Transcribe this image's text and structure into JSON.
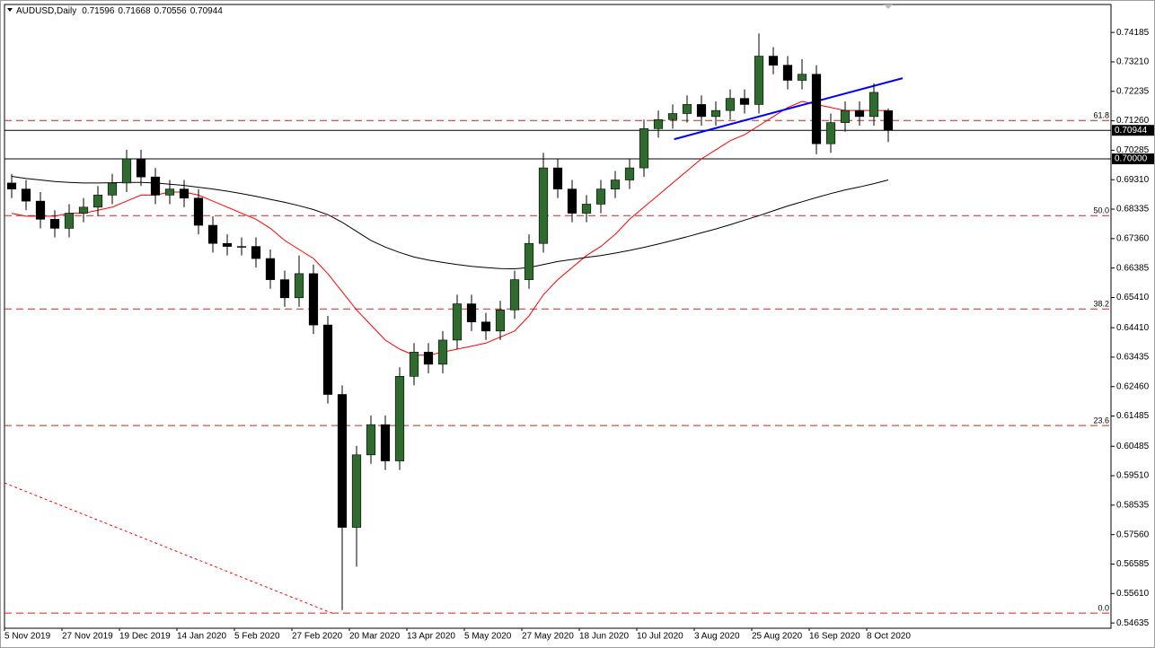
{
  "chart_data": {
    "type": "candlestick",
    "title": "AUDUSD,Daily",
    "categories": [
      "5 Nov 2019",
      null,
      null,
      null,
      "27 Nov 2019",
      null,
      null,
      null,
      "19 Dec 2019",
      null,
      null,
      null,
      "14 Jan 2020",
      null,
      null,
      null,
      "5 Feb 2020",
      null,
      null,
      null,
      "27 Feb 2020",
      null,
      null,
      null,
      "20 Mar 2020",
      null,
      null,
      null,
      "13 Apr 2020",
      null,
      null,
      null,
      "5 May 2020",
      null,
      null,
      null,
      "27 May 2020",
      null,
      null,
      null,
      "18 Jun 2020",
      null,
      null,
      null,
      "10 Jul 2020",
      null,
      null,
      null,
      "3 Aug 2020",
      null,
      null,
      null,
      "25 Aug 2020",
      null,
      null,
      null,
      "16 Sep 2020",
      null,
      null,
      null,
      "8 Oct 2020",
      null
    ],
    "open": [
      0.692,
      0.69,
      0.686,
      0.68,
      0.677,
      0.682,
      0.684,
      0.688,
      0.692,
      0.7,
      0.694,
      0.688,
      0.69,
      0.687,
      0.678,
      0.672,
      0.671,
      0.671,
      0.667,
      0.66,
      0.654,
      0.662,
      0.645,
      0.622,
      0.578,
      0.602,
      0.612,
      0.6,
      0.628,
      0.636,
      0.632,
      0.64,
      0.652,
      0.646,
      0.643,
      0.65,
      0.66,
      0.672,
      0.697,
      0.69,
      0.682,
      0.685,
      0.69,
      0.693,
      0.697,
      0.71,
      0.713,
      0.715,
      0.718,
      0.714,
      0.716,
      0.72,
      0.718,
      0.734,
      0.731,
      0.726,
      0.728,
      0.705,
      0.712,
      0.716,
      0.714,
      0.71596
    ],
    "high": [
      0.695,
      0.693,
      0.689,
      0.683,
      0.685,
      0.687,
      0.691,
      0.695,
      0.703,
      0.703,
      0.697,
      0.693,
      0.693,
      0.69,
      0.681,
      0.675,
      0.674,
      0.674,
      0.67,
      0.663,
      0.668,
      0.665,
      0.648,
      0.625,
      0.605,
      0.615,
      0.615,
      0.631,
      0.639,
      0.639,
      0.643,
      0.655,
      0.655,
      0.649,
      0.653,
      0.663,
      0.675,
      0.702,
      0.7,
      0.693,
      0.688,
      0.693,
      0.696,
      0.7,
      0.713,
      0.716,
      0.718,
      0.721,
      0.721,
      0.719,
      0.723,
      0.723,
      0.7415,
      0.737,
      0.734,
      0.733,
      0.731,
      0.715,
      0.719,
      0.719,
      0.725,
      0.71668
    ],
    "low": [
      0.687,
      0.683,
      0.677,
      0.674,
      0.674,
      0.679,
      0.681,
      0.685,
      0.689,
      0.691,
      0.685,
      0.685,
      0.684,
      0.675,
      0.669,
      0.668,
      0.668,
      0.664,
      0.657,
      0.651,
      0.651,
      0.642,
      0.619,
      0.5506,
      0.565,
      0.599,
      0.597,
      0.597,
      0.625,
      0.629,
      0.629,
      0.637,
      0.643,
      0.64,
      0.64,
      0.647,
      0.657,
      0.669,
      0.687,
      0.679,
      0.679,
      0.682,
      0.687,
      0.69,
      0.694,
      0.707,
      0.71,
      0.712,
      0.711,
      0.711,
      0.713,
      0.715,
      0.715,
      0.728,
      0.723,
      0.723,
      0.7015,
      0.702,
      0.709,
      0.711,
      0.711,
      0.70556
    ],
    "close": [
      0.69,
      0.686,
      0.68,
      0.677,
      0.682,
      0.684,
      0.688,
      0.692,
      0.7,
      0.694,
      0.688,
      0.69,
      0.687,
      0.678,
      0.672,
      0.671,
      0.671,
      0.667,
      0.66,
      0.654,
      0.662,
      0.645,
      0.622,
      0.578,
      0.602,
      0.612,
      0.6,
      0.628,
      0.636,
      0.632,
      0.64,
      0.652,
      0.646,
      0.643,
      0.65,
      0.66,
      0.672,
      0.697,
      0.69,
      0.682,
      0.685,
      0.69,
      0.693,
      0.697,
      0.71,
      0.713,
      0.715,
      0.718,
      0.714,
      0.716,
      0.72,
      0.718,
      0.734,
      0.731,
      0.726,
      0.728,
      0.705,
      0.712,
      0.716,
      0.714,
      0.722,
      0.70944
    ],
    "colors": {
      "bull": "#2f6b2f",
      "bear": "#000000",
      "wick": "#000000"
    },
    "series": [
      {
        "color": "#ff0000",
        "values": [
          0.682,
          0.681,
          0.681,
          0.681,
          0.682,
          0.682,
          0.683,
          0.684,
          0.686,
          0.688,
          0.688,
          0.689,
          0.689,
          0.688,
          0.686,
          0.684,
          0.682,
          0.68,
          0.677,
          0.673,
          0.67,
          0.667,
          0.662,
          0.656,
          0.65,
          0.645,
          0.64,
          0.637,
          0.635,
          0.635,
          0.636,
          0.637,
          0.638,
          0.639,
          0.641,
          0.643,
          0.648,
          0.655,
          0.66,
          0.664,
          0.668,
          0.671,
          0.675,
          0.68,
          0.684,
          0.688,
          0.692,
          0.696,
          0.7,
          0.703,
          0.706,
          0.708,
          0.711,
          0.714,
          0.717,
          0.719,
          0.718,
          0.717,
          0.716,
          0.716,
          0.716,
          0.716
        ]
      },
      {
        "color": "#000000",
        "values": [
          0.6942,
          0.6935,
          0.693,
          0.6925,
          0.6922,
          0.692,
          0.692,
          0.6921,
          0.6922,
          0.6922,
          0.692,
          0.6916,
          0.6912,
          0.6906,
          0.69,
          0.6893,
          0.6885,
          0.6876,
          0.6866,
          0.6856,
          0.6845,
          0.6832,
          0.6815,
          0.679,
          0.676,
          0.673,
          0.6708,
          0.669,
          0.6675,
          0.6665,
          0.6657,
          0.665,
          0.6644,
          0.664,
          0.6637,
          0.6636,
          0.664,
          0.665,
          0.666,
          0.6667,
          0.6674,
          0.668,
          0.6688,
          0.6697,
          0.6707,
          0.6718,
          0.673,
          0.6742,
          0.6755,
          0.6768,
          0.6782,
          0.6797,
          0.6812,
          0.6828,
          0.6844,
          0.6858,
          0.6872,
          0.6885,
          0.6897,
          0.6907,
          0.6918,
          0.693
        ]
      }
    ],
    "trendlines": [
      {
        "color": "#0000ff",
        "style": "solid",
        "x": [
          46.1,
          62
        ],
        "y": [
          0.7065,
          0.7267
        ]
      },
      {
        "color": "#ff0000",
        "style": "dotted",
        "x": [
          -0.5,
          22.3
        ],
        "y": [
          0.5927,
          0.5496
        ]
      }
    ],
    "fib_levels": [
      {
        "label": "61.8",
        "value": 0.7127
      },
      {
        "label": "50.0",
        "value": 0.6812
      },
      {
        "label": "38.2",
        "value": 0.6503
      },
      {
        "label": "23.6",
        "value": 0.6117
      },
      {
        "label": "0.0",
        "value": 0.5496
      }
    ],
    "fib_color": "#d62020",
    "levels": [
      {
        "value": 0.7,
        "label": "0.70000"
      }
    ],
    "xlim": [
      -0.5,
      76.5
    ],
    "ylim": [
      0.5446,
      0.7511
    ],
    "yticks": [
      {
        "value": 0.74185,
        "label": "0.74185"
      },
      {
        "value": 0.7321,
        "label": "0.73210"
      },
      {
        "value": 0.72235,
        "label": "0.72235"
      },
      {
        "value": 0.7126,
        "label": "0.71260"
      },
      {
        "value": 0.70285,
        "label": "0.70285"
      },
      {
        "value": 0.6931,
        "label": "0.69310"
      },
      {
        "value": 0.68335,
        "label": "0.68335"
      },
      {
        "value": 0.6736,
        "label": "0.67360"
      },
      {
        "value": 0.66385,
        "label": "0.66385"
      },
      {
        "value": 0.6541,
        "label": "0.65410"
      },
      {
        "value": 0.6441,
        "label": "0.64410"
      },
      {
        "value": 0.63435,
        "label": "0.63435"
      },
      {
        "value": 0.6246,
        "label": "0.62460"
      },
      {
        "value": 0.61485,
        "label": "0.61485"
      },
      {
        "value": 0.60485,
        "label": "0.60485"
      },
      {
        "value": 0.5951,
        "label": "0.59510"
      },
      {
        "value": 0.58535,
        "label": "0.58535"
      },
      {
        "value": 0.5756,
        "label": "0.57560"
      },
      {
        "value": 0.56585,
        "label": "0.56585"
      },
      {
        "value": 0.5561,
        "label": "0.55610"
      },
      {
        "value": 0.54635,
        "label": "0.54635"
      }
    ]
  }
}
